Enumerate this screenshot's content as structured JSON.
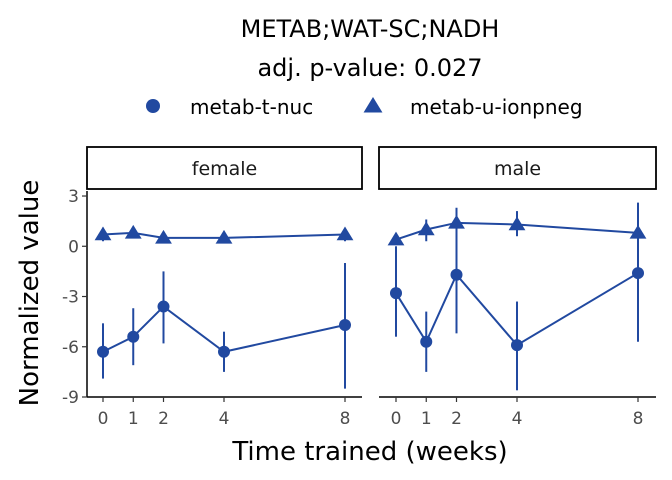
{
  "chart_data": {
    "type": "line",
    "title": "METAB;WAT-SC;NADH",
    "subtitle": "adj. p-value: 0.027",
    "xlabel": "Time trained (weeks)",
    "ylabel": "Normalized value",
    "x_ticks": [
      0,
      1,
      2,
      4,
      8
    ],
    "y_ticks": [
      3,
      0,
      -3,
      -6,
      -9
    ],
    "ylim": [
      -9,
      3.3
    ],
    "legend_position": "top",
    "color": "#2149a0",
    "legend": [
      {
        "name": "metab-t-nuc",
        "shape": "circle"
      },
      {
        "name": "metab-u-ionpneg",
        "shape": "triangle"
      }
    ],
    "panels": [
      {
        "label": "female",
        "series": [
          {
            "name": "metab-t-nuc",
            "shape": "circle",
            "x": [
              0,
              1,
              2,
              4,
              8
            ],
            "y": [
              -6.3,
              -5.4,
              -3.6,
              -6.3,
              -4.7
            ],
            "err_low": [
              -7.9,
              -7.1,
              -5.8,
              -7.5,
              -8.5
            ],
            "err_high": [
              -4.6,
              -3.7,
              -1.5,
              -5.1,
              -1.0
            ]
          },
          {
            "name": "metab-u-ionpneg",
            "shape": "triangle",
            "x": [
              0,
              1,
              2,
              4,
              8
            ],
            "y": [
              0.7,
              0.8,
              0.5,
              0.5,
              0.7
            ],
            "err_low": [
              0.3,
              0.5,
              0.2,
              0.2,
              0.3
            ],
            "err_high": [
              1.1,
              1.1,
              0.8,
              0.8,
              1.0
            ]
          }
        ]
      },
      {
        "label": "male",
        "series": [
          {
            "name": "metab-t-nuc",
            "shape": "circle",
            "x": [
              0,
              1,
              2,
              4,
              8
            ],
            "y": [
              -2.8,
              -5.7,
              -1.7,
              -5.9,
              -1.6
            ],
            "err_low": [
              -5.4,
              -7.5,
              -5.2,
              -8.6,
              -5.7
            ],
            "err_high": [
              0.0,
              -3.9,
              1.8,
              -3.3,
              2.6
            ]
          },
          {
            "name": "metab-u-ionpneg",
            "shape": "triangle",
            "x": [
              0,
              1,
              2,
              4,
              8
            ],
            "y": [
              0.4,
              1.0,
              1.4,
              1.3,
              0.8
            ],
            "err_low": [
              0.1,
              0.3,
              0.6,
              0.6,
              -0.2
            ],
            "err_high": [
              0.7,
              1.6,
              2.3,
              2.1,
              2.6
            ]
          }
        ]
      }
    ]
  }
}
